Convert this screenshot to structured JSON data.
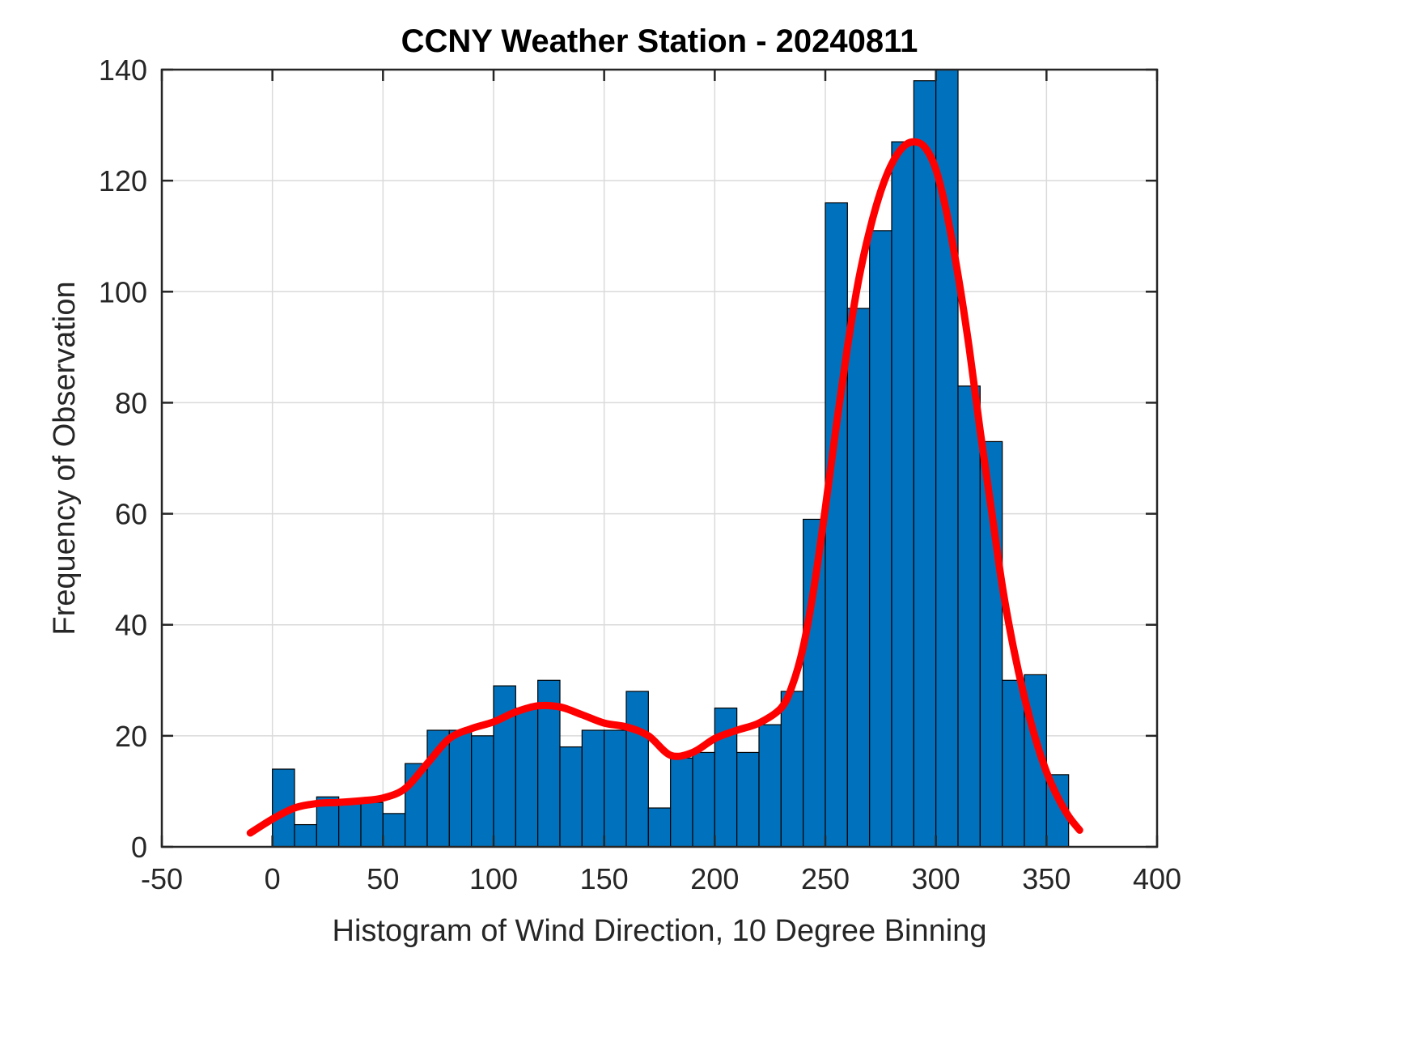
{
  "chart_data": {
    "type": "bar",
    "subtype": "histogram",
    "title": "CCNY Weather Station - 20240811",
    "xlabel": "Histogram of Wind Direction, 10 Degree Binning",
    "ylabel": "Frequency of Observation",
    "xlim": [
      -50,
      400
    ],
    "ylim": [
      0,
      140
    ],
    "xticks": [
      -50,
      0,
      50,
      100,
      150,
      200,
      250,
      300,
      350,
      400
    ],
    "yticks": [
      0,
      20,
      40,
      60,
      80,
      100,
      120,
      140
    ],
    "grid": true,
    "legend": "none",
    "bin_start": 0,
    "bin_width": 10,
    "bar_color": "#0072BD",
    "bar_edge_color": "#000000",
    "values": [
      14,
      4,
      9,
      8,
      8,
      6,
      15,
      21,
      21,
      20,
      29,
      25,
      30,
      18,
      21,
      21,
      28,
      7,
      16,
      17,
      25,
      17,
      22,
      28,
      59,
      116,
      97,
      111,
      127,
      138,
      140,
      83,
      73,
      30,
      31,
      13
    ],
    "curve": {
      "name": "smoothed-fit-line",
      "color": "#FF0000",
      "x": [
        -10,
        0,
        10,
        20,
        30,
        40,
        50,
        60,
        70,
        80,
        90,
        100,
        110,
        120,
        130,
        140,
        150,
        160,
        170,
        180,
        190,
        200,
        210,
        220,
        230,
        235,
        240,
        245,
        250,
        255,
        260,
        265,
        270,
        275,
        280,
        285,
        290,
        295,
        300,
        305,
        310,
        315,
        320,
        325,
        330,
        335,
        340,
        345,
        350,
        355,
        360,
        365
      ],
      "y": [
        2.5,
        5,
        7,
        7.8,
        8,
        8.3,
        8.8,
        10.5,
        15,
        19.5,
        21.3,
        22.5,
        24.3,
        25.4,
        25.2,
        23.8,
        22.3,
        21.6,
        20,
        16.5,
        17,
        19.5,
        21,
        22.3,
        25,
        29,
        36,
        47,
        61,
        76,
        90,
        102,
        111,
        118,
        123,
        126,
        127,
        126,
        122,
        114,
        103,
        90,
        75,
        61,
        47,
        36,
        27,
        19.5,
        13.5,
        9,
        5.5,
        3
      ]
    }
  }
}
